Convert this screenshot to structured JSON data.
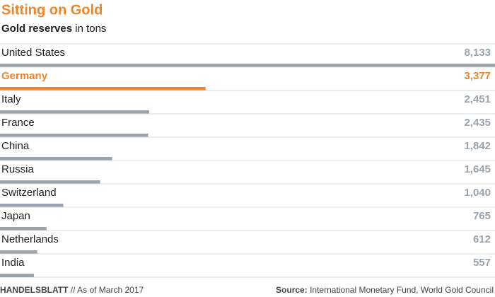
{
  "chart_data": {
    "type": "bar",
    "orientation": "horizontal",
    "title": "Sitting on Gold",
    "subtitle_bold": "Gold reserves",
    "subtitle": "in tons",
    "categories": [
      "United States",
      "Germany",
      "Italy",
      "France",
      "China",
      "Russia",
      "Switzerland",
      "Japan",
      "Netherlands",
      "India"
    ],
    "values": [
      8133,
      3377,
      2451,
      2435,
      1842,
      1645,
      1040,
      765,
      612,
      557
    ],
    "value_labels": [
      "8,133",
      "3,377",
      "2,451",
      "2,435",
      "1,842",
      "1,645",
      "1,040",
      "765",
      "612",
      "557"
    ],
    "colors": [
      "#98a4ae",
      "#f0852a",
      "#98a4ae",
      "#98a4ae",
      "#98a4ae",
      "#98a4ae",
      "#98a4ae",
      "#98a4ae",
      "#98a4ae",
      "#98a4ae"
    ],
    "footer_brand": "HANDELSBLATT",
    "footer_note": "// As of March 2017",
    "source_label": "Source:",
    "source": "International Monetary Fund, World Gold Council"
  }
}
